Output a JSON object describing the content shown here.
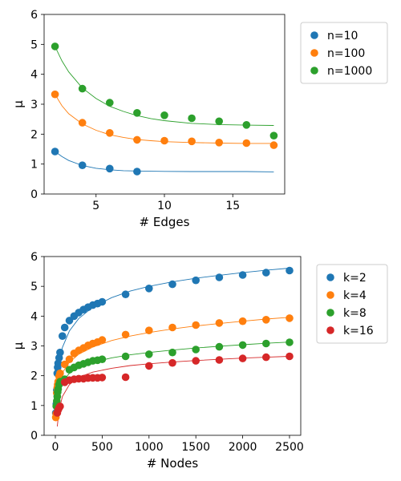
{
  "chart_data": [
    {
      "type": "scatter",
      "xlabel": "# Edges",
      "ylabel": "μ",
      "xlim": [
        1.2,
        18.8
      ],
      "ylim": [
        0,
        6
      ],
      "xticks": [
        5,
        10,
        15
      ],
      "yticks": [
        0,
        1,
        2,
        3,
        4,
        5,
        6
      ],
      "legend_position": "outside-right-top",
      "series": [
        {
          "name": "n=10",
          "color": "#1f77b4",
          "x": [
            2,
            4,
            6,
            8
          ],
          "y": [
            1.42,
            0.96,
            0.85,
            0.75
          ],
          "fit": {
            "x": [
              2,
              2.5,
              3,
              4,
              5,
              6,
              7,
              8,
              9,
              10,
              12,
              14,
              16,
              18
            ],
            "y": [
              1.42,
              1.25,
              1.12,
              0.95,
              0.86,
              0.81,
              0.78,
              0.77,
              0.76,
              0.755,
              0.75,
              0.75,
              0.75,
              0.74
            ]
          }
        },
        {
          "name": "n=100",
          "color": "#ff7f0e",
          "x": [
            2,
            4,
            6,
            8,
            10,
            12,
            14,
            16,
            18
          ],
          "y": [
            3.33,
            2.38,
            2.04,
            1.81,
            1.78,
            1.76,
            1.72,
            1.7,
            1.63
          ],
          "fit": {
            "x": [
              2,
              2.5,
              3,
              4,
              5,
              6,
              7,
              8,
              9,
              10,
              12,
              14,
              16,
              18
            ],
            "y": [
              3.33,
              2.95,
              2.68,
              2.34,
              2.13,
              1.98,
              1.89,
              1.82,
              1.78,
              1.75,
              1.72,
              1.7,
              1.69,
              1.69
            ]
          }
        },
        {
          "name": "n=1000",
          "color": "#2ca02c",
          "x": [
            2,
            4,
            6,
            8,
            10,
            12,
            14,
            16,
            18
          ],
          "y": [
            4.93,
            3.52,
            3.05,
            2.71,
            2.63,
            2.53,
            2.43,
            2.31,
            1.95
          ],
          "fit": {
            "x": [
              2,
              2.5,
              3,
              4,
              5,
              6,
              7,
              8,
              9,
              10,
              12,
              14,
              16,
              18
            ],
            "y": [
              4.93,
              4.45,
              4.08,
              3.54,
              3.19,
              2.93,
              2.76,
              2.62,
              2.52,
              2.45,
              2.36,
              2.32,
              2.3,
              2.29
            ]
          }
        }
      ]
    },
    {
      "type": "scatter",
      "xlabel": "# Nodes",
      "ylabel": "μ",
      "xlim": [
        -120,
        2620
      ],
      "ylim": [
        0,
        6
      ],
      "xticks": [
        0,
        500,
        1000,
        1500,
        2000,
        2500
      ],
      "yticks": [
        0,
        1,
        2,
        3,
        4,
        5,
        6
      ],
      "legend_position": "outside-right-top",
      "series": [
        {
          "name": "k=2",
          "color": "#1f77b4",
          "x": [
            5,
            10,
            15,
            20,
            25,
            30,
            40,
            50,
            75,
            100,
            150,
            200,
            250,
            300,
            350,
            400,
            450,
            500,
            750,
            1000,
            1250,
            1500,
            1750,
            2000,
            2250,
            2500
          ],
          "y": [
            0.75,
            1.05,
            1.52,
            2.08,
            2.28,
            2.42,
            2.6,
            2.78,
            3.33,
            3.62,
            3.85,
            4.0,
            4.12,
            4.22,
            4.3,
            4.37,
            4.42,
            4.48,
            4.73,
            4.93,
            5.07,
            5.2,
            5.3,
            5.38,
            5.46,
            5.53
          ],
          "fit": {
            "x": [
              5,
              10,
              20,
              40,
              75,
              150,
              250,
              400,
              600,
              800,
              1000,
              1250,
              1500,
              1750,
              2000,
              2250,
              2500
            ],
            "y": [
              0.7,
              1.2,
              1.8,
              2.42,
              2.95,
              3.5,
              3.92,
              4.3,
              4.62,
              4.84,
              5.0,
              5.15,
              5.27,
              5.37,
              5.46,
              5.54,
              5.61
            ]
          }
        },
        {
          "name": "k=4",
          "color": "#ff7f0e",
          "x": [
            5,
            10,
            15,
            20,
            25,
            30,
            40,
            50,
            100,
            150,
            200,
            250,
            300,
            350,
            400,
            450,
            500,
            750,
            1000,
            1250,
            1500,
            1750,
            2000,
            2250,
            2500
          ],
          "y": [
            0.6,
            0.72,
            1.42,
            1.6,
            1.7,
            1.8,
            1.98,
            2.08,
            2.38,
            2.55,
            2.75,
            2.85,
            2.93,
            3.02,
            3.08,
            3.13,
            3.2,
            3.38,
            3.52,
            3.62,
            3.7,
            3.77,
            3.83,
            3.88,
            3.93
          ],
          "fit": {
            "x": [
              5,
              10,
              20,
              40,
              75,
              150,
              250,
              400,
              600,
              800,
              1000,
              1250,
              1500,
              1750,
              2000,
              2250,
              2500
            ],
            "y": [
              0.55,
              0.95,
              1.4,
              1.8,
              2.1,
              2.45,
              2.72,
              2.96,
              3.18,
              3.33,
              3.45,
              3.57,
              3.67,
              3.75,
              3.83,
              3.9,
              3.96
            ]
          }
        },
        {
          "name": "k=8",
          "color": "#2ca02c",
          "x": [
            10,
            15,
            20,
            25,
            30,
            40,
            50,
            100,
            150,
            200,
            250,
            300,
            350,
            400,
            450,
            500,
            750,
            1000,
            1250,
            1500,
            1750,
            2000,
            2250,
            2500
          ],
          "y": [
            0.98,
            1.15,
            1.3,
            1.45,
            1.55,
            1.7,
            1.8,
            1.88,
            2.2,
            2.28,
            2.35,
            2.4,
            2.45,
            2.5,
            2.52,
            2.55,
            2.65,
            2.72,
            2.78,
            2.88,
            2.97,
            3.03,
            3.08,
            3.12
          ],
          "fit": {
            "x": [
              10,
              20,
              40,
              75,
              150,
              250,
              400,
              600,
              800,
              1000,
              1250,
              1500,
              1750,
              2000,
              2250,
              2500
            ],
            "y": [
              0.95,
              1.25,
              1.55,
              1.8,
              2.08,
              2.28,
              2.45,
              2.6,
              2.7,
              2.78,
              2.86,
              2.93,
              2.99,
              3.04,
              3.09,
              3.13
            ]
          }
        },
        {
          "name": "k=16",
          "color": "#d62728",
          "x": [
            20,
            30,
            40,
            50,
            100,
            150,
            200,
            250,
            300,
            350,
            400,
            450,
            500,
            750,
            1000,
            1250,
            1500,
            1750,
            2000,
            2250,
            2500
          ],
          "y": [
            0.75,
            0.85,
            0.92,
            0.97,
            1.78,
            1.85,
            1.88,
            1.9,
            1.9,
            1.92,
            1.93,
            1.93,
            1.94,
            1.95,
            2.33,
            2.43,
            2.5,
            2.53,
            2.58,
            2.62,
            2.65
          ],
          "fit": {
            "x": [
              20,
              40,
              75,
              150,
              250,
              400,
              600,
              800,
              1000,
              1250,
              1500,
              1750,
              2000,
              2250,
              2500
            ],
            "y": [
              0.3,
              0.85,
              1.3,
              1.7,
              1.95,
              2.12,
              2.25,
              2.34,
              2.4,
              2.46,
              2.51,
              2.55,
              2.59,
              2.62,
              2.65
            ]
          }
        }
      ]
    }
  ]
}
